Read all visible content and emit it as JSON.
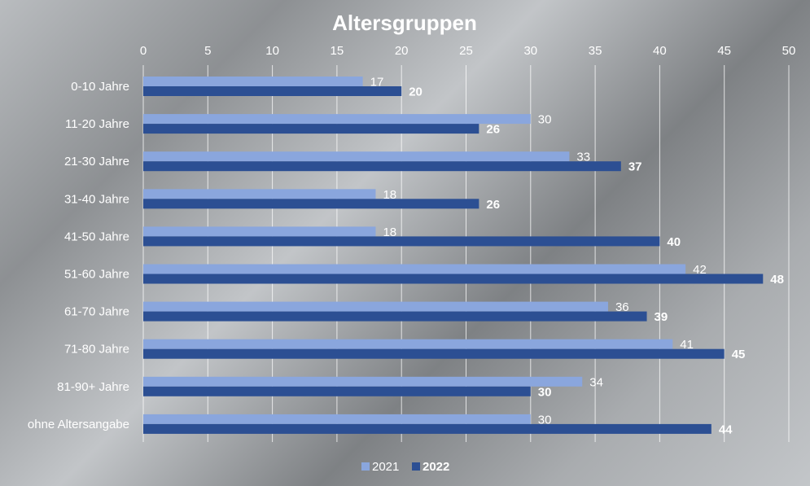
{
  "chart_data": {
    "type": "bar",
    "orientation": "horizontal",
    "title": "Altersgruppen",
    "categories": [
      "0-10 Jahre",
      "11-20 Jahre",
      "21-30 Jahre",
      "31-40 Jahre",
      "41-50 Jahre",
      "51-60 Jahre",
      "61-70 Jahre",
      "71-80 Jahre",
      "81-90+ Jahre",
      "ohne Altersangabe"
    ],
    "series": [
      {
        "name": "2021",
        "values": [
          17,
          30,
          33,
          18,
          18,
          42,
          36,
          41,
          34,
          30
        ],
        "color": "#8aa6dd"
      },
      {
        "name": "2022",
        "values": [
          20,
          26,
          37,
          26,
          40,
          48,
          39,
          45,
          30,
          44
        ],
        "color": "#2c4f93"
      }
    ],
    "xlim": [
      0,
      50
    ],
    "xticks": [
      "0",
      "5",
      "10",
      "15",
      "20",
      "25",
      "30",
      "35",
      "40",
      "45",
      "50"
    ],
    "x_axis_position": "top",
    "grid": true,
    "legend": "bottom-center"
  }
}
